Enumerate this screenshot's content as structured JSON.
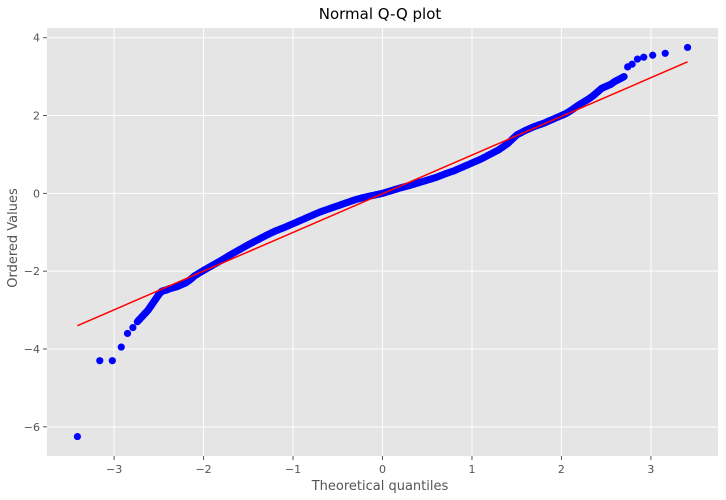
{
  "chart_data": {
    "type": "scatter",
    "title": "Normal Q-Q plot",
    "xlabel": "Theoretical quantiles",
    "ylabel": "Ordered Values",
    "xlim": [
      -3.75,
      3.75
    ],
    "ylim": [
      -6.75,
      4.25
    ],
    "x_ticks": [
      -3,
      -2,
      -1,
      0,
      1,
      2,
      3
    ],
    "y_ticks": [
      -6,
      -4,
      -2,
      0,
      2,
      4
    ],
    "x_tick_labels": [
      "−3",
      "−2",
      "−1",
      "0",
      "1",
      "2",
      "3"
    ],
    "y_tick_labels": [
      "−6",
      "−4",
      "−2",
      "0",
      "2",
      "4"
    ],
    "grid": true,
    "colors": {
      "background": "#e5e5e5",
      "grid": "#ffffff",
      "points": "#0000ff",
      "fit_line": "#ff0000"
    },
    "fit_line": {
      "x": [
        -3.41,
        3.41
      ],
      "y": [
        -3.4,
        3.38
      ]
    },
    "points": {
      "x": [
        -3.41,
        -3.16,
        -3.02,
        -2.92,
        -2.85,
        -2.79,
        -2.74,
        -2.7,
        -2.66,
        -2.62,
        -2.59,
        -2.56,
        -2.53,
        -2.5,
        -2.47,
        -2.44,
        -2.41,
        -2.38,
        -2.35,
        -2.3,
        -2.25,
        -2.2,
        -2.15,
        -2.1,
        -2.0,
        -1.9,
        -1.8,
        -1.7,
        -1.6,
        -1.5,
        -1.4,
        -1.3,
        -1.2,
        -1.1,
        -1.0,
        -0.9,
        -0.8,
        -0.7,
        -0.6,
        -0.5,
        -0.4,
        -0.3,
        -0.2,
        -0.1,
        0.0,
        0.1,
        0.2,
        0.3,
        0.4,
        0.5,
        0.6,
        0.7,
        0.8,
        0.9,
        1.0,
        1.1,
        1.2,
        1.3,
        1.4,
        1.5,
        1.6,
        1.7,
        1.8,
        1.9,
        2.0,
        2.05,
        2.1,
        2.15,
        2.2,
        2.25,
        2.3,
        2.35,
        2.4,
        2.45,
        2.5,
        2.55,
        2.6,
        2.66,
        2.7,
        2.74,
        2.79,
        2.85,
        2.92,
        3.02,
        3.16,
        3.41
      ],
      "y": [
        -6.25,
        -4.3,
        -4.3,
        -3.95,
        -3.6,
        -3.45,
        -3.3,
        -3.2,
        -3.1,
        -3.0,
        -2.9,
        -2.8,
        -2.7,
        -2.6,
        -2.52,
        -2.5,
        -2.48,
        -2.45,
        -2.43,
        -2.4,
        -2.35,
        -2.3,
        -2.22,
        -2.12,
        -1.98,
        -1.85,
        -1.72,
        -1.58,
        -1.45,
        -1.32,
        -1.2,
        -1.08,
        -0.97,
        -0.88,
        -0.78,
        -0.68,
        -0.58,
        -0.48,
        -0.4,
        -0.32,
        -0.24,
        -0.16,
        -0.1,
        -0.05,
        0.0,
        0.07,
        0.14,
        0.2,
        0.27,
        0.34,
        0.41,
        0.5,
        0.58,
        0.68,
        0.78,
        0.88,
        1.0,
        1.12,
        1.28,
        1.5,
        1.62,
        1.72,
        1.8,
        1.9,
        2.0,
        2.05,
        2.12,
        2.2,
        2.28,
        2.35,
        2.42,
        2.5,
        2.6,
        2.7,
        2.75,
        2.8,
        2.88,
        2.95,
        3.0,
        3.25,
        3.32,
        3.45,
        3.5,
        3.55,
        3.6,
        3.75
      ]
    }
  }
}
